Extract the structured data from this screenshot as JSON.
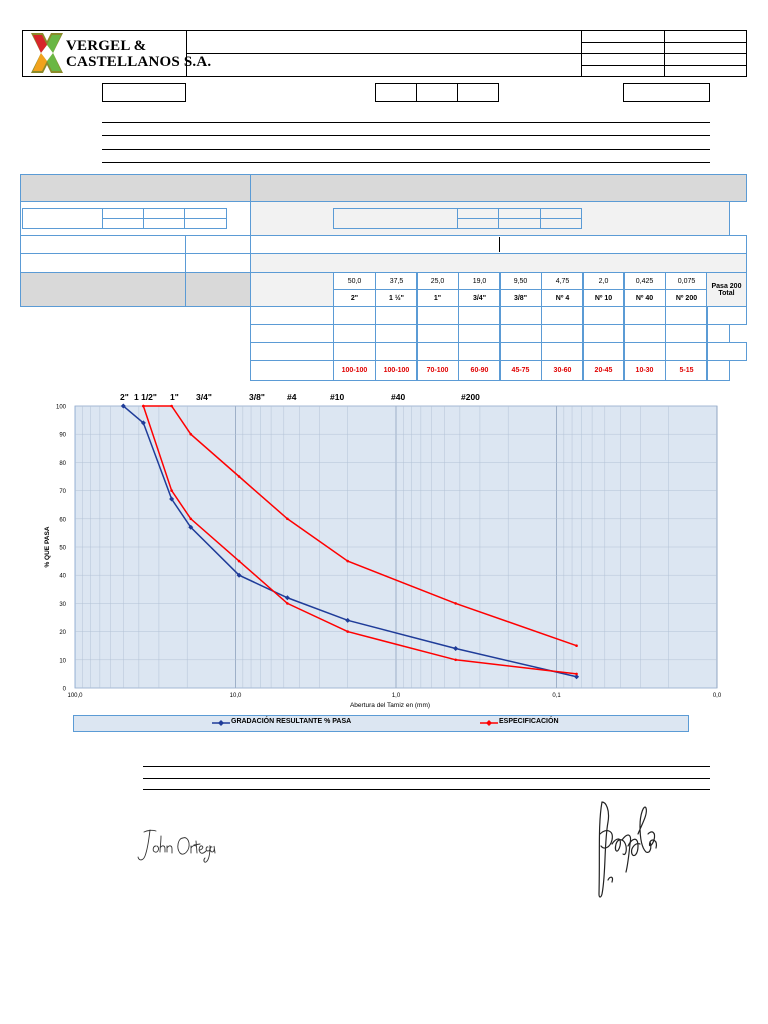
{
  "header": {
    "company_line1": "VERGEL &",
    "company_line2": "CASTELLANOS S.A.",
    "brand_colors": {
      "red": "#d7262b",
      "green": "#6ab744",
      "orange": "#f1a21c",
      "olive": "#8a8a2a"
    }
  },
  "grading_table": {
    "sizes_mm": [
      "50,0",
      "37,5",
      "25,0",
      "19,0",
      "9,50",
      "4,75",
      "2,0",
      "0,425",
      "0,075"
    ],
    "sizes_in": [
      "2\"",
      "1 ½\"",
      "1\"",
      "3/4\"",
      "3/8\"",
      "Nº 4",
      "Nº 10",
      "Nº 40",
      "Nº 200"
    ],
    "pasa_200": "Pasa 200",
    "total": "Total",
    "spec": [
      "100-100",
      "100-100",
      "70-100",
      "60-90",
      "45-75",
      "30-60",
      "20-45",
      "10-30",
      "5-15"
    ]
  },
  "chart_data": {
    "type": "line",
    "x_scale": "log",
    "x_reversed": true,
    "xlim": [
      100,
      0.01
    ],
    "ylim": [
      0,
      100
    ],
    "xlabel": "Abertura del Tamiz en (mm)",
    "ylabel": "% QUE PASA",
    "x_tick_labels": [
      "100,0",
      "10,0",
      "1,0",
      "0,1",
      "0,0"
    ],
    "y_tick_labels": [
      "0",
      "10",
      "20",
      "30",
      "40",
      "50",
      "60",
      "70",
      "80",
      "90",
      "100"
    ],
    "top_sieve_labels": [
      "2\"",
      "1 1/2\"",
      "1\"",
      "3/4\"",
      "3/8\"",
      "#4",
      "#10",
      "#40",
      "#200"
    ],
    "grid": true,
    "legend_position": "bottom",
    "series": [
      {
        "name": "GRADACIÓN RESULTANTE % PASA",
        "color": "#1f3c99",
        "x": [
          50.0,
          37.5,
          25.0,
          19.0,
          9.5,
          4.75,
          2.0,
          0.425,
          0.075
        ],
        "y": [
          100,
          94,
          67,
          57,
          40,
          32,
          24,
          14,
          4
        ]
      },
      {
        "name": "ESPECIFICACIÓN",
        "color": "#ff0000",
        "x": [
          37.5,
          25.0,
          19.0,
          9.5,
          4.75,
          2.0,
          0.425,
          0.075
        ],
        "y": [
          100,
          100,
          90,
          75,
          60,
          45,
          30,
          15
        ]
      },
      {
        "name": "",
        "color": "#ff0000",
        "x": [
          37.5,
          25.0,
          19.0,
          9.5,
          4.75,
          2.0,
          0.425,
          0.075
        ],
        "y": [
          100,
          70,
          60,
          45,
          30,
          20,
          10,
          5
        ]
      }
    ]
  },
  "signatures": {
    "left": "John Ortega"
  }
}
